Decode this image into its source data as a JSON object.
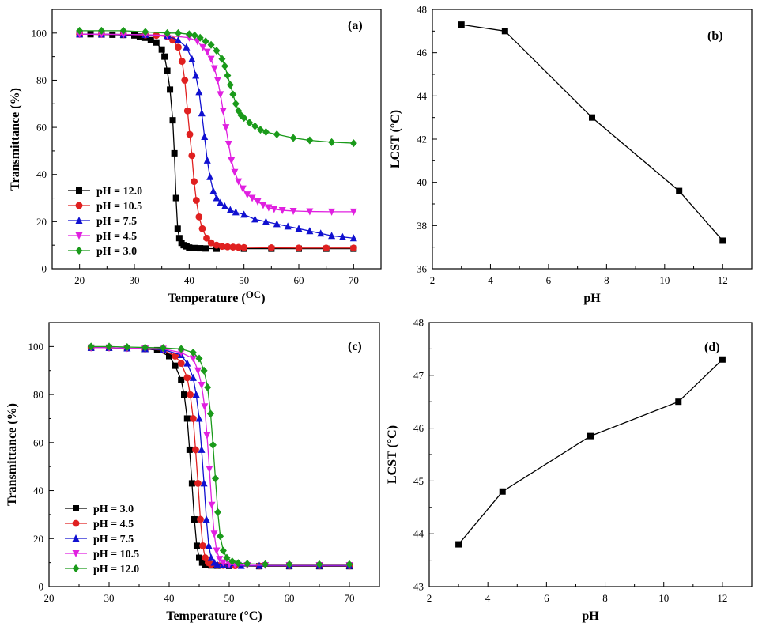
{
  "chart_data": [
    {
      "panel": "(a)",
      "type": "line",
      "xlabel": "Temperature (",
      "xlabel_unit": "OC",
      "xlabel_close": ")",
      "ylabel": "Transmittance (%)",
      "xlim": [
        15,
        75
      ],
      "ylim": [
        0,
        110
      ],
      "xticks": [
        20,
        30,
        40,
        50,
        60,
        70
      ],
      "yticks": [
        0,
        20,
        40,
        60,
        80,
        100
      ],
      "x_minor_per_major": 1,
      "y_minor_per_major": 1,
      "legend": "bottom-left",
      "series": [
        {
          "name": "pH = 12.0",
          "color": "#000000",
          "marker": "square",
          "x": [
            20,
            22,
            24,
            26,
            28,
            30,
            31,
            32,
            33,
            34,
            35,
            35.5,
            36,
            36.5,
            37,
            37.3,
            37.6,
            37.9,
            38.2,
            38.6,
            39,
            39.5,
            40,
            41,
            42,
            43,
            45,
            50,
            55,
            60,
            65,
            70
          ],
          "y": [
            99.5,
            99.5,
            99.4,
            99.3,
            99.2,
            99,
            98.5,
            98,
            97,
            96,
            93,
            90,
            84,
            76,
            63,
            49,
            30,
            17,
            13,
            11,
            10,
            9.5,
            9,
            8.8,
            8.7,
            8.6,
            8.5,
            8.5,
            8.5,
            8.5,
            8.5,
            8.5
          ]
        },
        {
          "name": "pH = 10.5",
          "color": "#e02020",
          "marker": "circle",
          "x": [
            20,
            24,
            28,
            32,
            34,
            36,
            37,
            38,
            38.7,
            39.2,
            39.7,
            40.1,
            40.5,
            40.9,
            41.3,
            41.8,
            42.4,
            43.2,
            44,
            45,
            46,
            47,
            48,
            49,
            50,
            55,
            60,
            65,
            70
          ],
          "y": [
            99.5,
            99.5,
            99.4,
            99.2,
            99,
            98.5,
            97,
            94,
            88,
            80,
            67,
            57,
            48,
            37,
            29,
            22,
            17,
            13,
            11,
            10,
            9.5,
            9.3,
            9.2,
            9.1,
            9,
            8.9,
            8.8,
            8.8,
            8.8
          ]
        },
        {
          "name": "pH = 7.5",
          "color": "#1010d0",
          "marker": "triangle-up",
          "x": [
            20,
            24,
            28,
            32,
            36,
            38,
            39.5,
            40.5,
            41.2,
            41.8,
            42.3,
            42.8,
            43.3,
            43.8,
            44.4,
            45,
            45.7,
            46.5,
            47.5,
            48.5,
            50,
            52,
            54,
            56,
            58,
            60,
            62,
            64,
            66,
            68,
            70
          ],
          "y": [
            99.5,
            99.5,
            99.4,
            99.3,
            98.8,
            97,
            94,
            89,
            82,
            75,
            66,
            56,
            46,
            39,
            33,
            30,
            28,
            26.5,
            25,
            24,
            23,
            21,
            20,
            19,
            18,
            17,
            16,
            15,
            14,
            13.5,
            13
          ]
        },
        {
          "name": "pH = 4.5",
          "color": "#e020e0",
          "marker": "triangle-down",
          "x": [
            20,
            24,
            28,
            32,
            36,
            40,
            41.5,
            42.5,
            43.3,
            44,
            44.6,
            45.2,
            45.7,
            46.2,
            46.7,
            47.2,
            47.7,
            48.3,
            49,
            49.8,
            50.6,
            51.5,
            52.5,
            53.5,
            54.5,
            55.5,
            57,
            59,
            62,
            66,
            70
          ],
          "y": [
            99.5,
            99.5,
            99.4,
            99.3,
            99,
            98,
            96.5,
            94,
            92,
            89,
            85,
            80,
            74,
            67,
            60,
            53,
            46,
            41,
            37,
            34,
            31.5,
            30,
            28.5,
            27,
            26,
            25.3,
            24.8,
            24.5,
            24.3,
            24.2,
            24.2
          ]
        },
        {
          "name": "pH = 3.0",
          "color": "#1a9a1a",
          "marker": "diamond",
          "x": [
            20,
            24,
            28,
            32,
            36,
            38,
            40,
            41,
            42,
            43,
            44,
            45,
            46,
            46.5,
            47,
            47.5,
            48,
            48.5,
            49,
            49.5,
            50,
            51,
            52,
            53,
            54,
            56,
            59,
            62,
            66,
            70
          ],
          "y": [
            101,
            101,
            101,
            100.5,
            100,
            100,
            99.5,
            99,
            98,
            96.5,
            95,
            92.5,
            89,
            86,
            82,
            78,
            74,
            70,
            67,
            65,
            64,
            62,
            60.5,
            59,
            58,
            57,
            55.5,
            54.5,
            53.7,
            53.3
          ]
        }
      ]
    },
    {
      "panel": "(b)",
      "type": "line",
      "xlabel": "pH",
      "ylabel": "LCST (°C)",
      "xlim": [
        2,
        13
      ],
      "ylim": [
        36,
        48
      ],
      "xticks": [
        2,
        4,
        6,
        8,
        10,
        12
      ],
      "yticks": [
        36,
        38,
        40,
        42,
        44,
        46,
        48
      ],
      "x_minor_per_major": 1,
      "y_minor_per_major": 1,
      "series": [
        {
          "name": "LCST",
          "color": "#000000",
          "marker": "square",
          "x": [
            3.0,
            4.5,
            7.5,
            10.5,
            12.0
          ],
          "y": [
            47.3,
            47.0,
            43.0,
            39.6,
            37.3
          ]
        }
      ]
    },
    {
      "panel": "(c)",
      "type": "line",
      "xlabel": "Temperature (°C)",
      "ylabel": "Transmittance (%)",
      "xlim": [
        20,
        75
      ],
      "ylim": [
        0,
        110
      ],
      "xticks": [
        20,
        30,
        40,
        50,
        60,
        70
      ],
      "yticks": [
        0,
        20,
        40,
        60,
        80,
        100
      ],
      "x_minor_per_major": 1,
      "y_minor_per_major": 1,
      "legend": "bottom-left",
      "series": [
        {
          "name": "pH = 3.0",
          "color": "#000000",
          "marker": "square",
          "x": [
            27,
            30,
            33,
            36,
            38,
            40,
            41,
            42,
            42.5,
            43,
            43.4,
            43.8,
            44.2,
            44.6,
            45,
            45.5,
            46,
            47,
            48,
            50,
            55,
            60,
            65,
            70
          ],
          "y": [
            99.5,
            99.5,
            99.3,
            99,
            98.5,
            96,
            92,
            86,
            80,
            70,
            57,
            43,
            28,
            17,
            12,
            10,
            9,
            8.8,
            8.7,
            8.6,
            8.5,
            8.5,
            8.5,
            8.5
          ]
        },
        {
          "name": "pH = 4.5",
          "color": "#e02020",
          "marker": "circle",
          "x": [
            27,
            30,
            33,
            36,
            39,
            41,
            42,
            43,
            43.5,
            44,
            44.4,
            44.8,
            45.2,
            45.6,
            46,
            46.5,
            47,
            48,
            49,
            51,
            55,
            60,
            65,
            70
          ],
          "y": [
            99.5,
            99.5,
            99.3,
            99,
            98.5,
            96,
            93,
            87,
            80,
            70,
            57,
            43,
            28,
            17,
            12,
            10,
            9.2,
            8.9,
            8.8,
            8.7,
            8.6,
            8.6,
            8.6,
            8.6
          ]
        },
        {
          "name": "pH = 7.5",
          "color": "#1010d0",
          "marker": "triangle-up",
          "x": [
            27,
            30,
            33,
            36,
            39,
            42,
            43,
            44,
            44.5,
            45,
            45.4,
            45.8,
            46.2,
            46.6,
            47,
            47.5,
            48,
            49,
            50,
            52,
            55,
            60,
            65,
            70
          ],
          "y": [
            99.5,
            99.5,
            99.3,
            99,
            98.7,
            96.5,
            93,
            87,
            80,
            70,
            57,
            43,
            28,
            17,
            12,
            10,
            9.2,
            8.9,
            8.8,
            8.7,
            8.7,
            8.7,
            8.7,
            8.7
          ]
        },
        {
          "name": "pH = 10.5",
          "color": "#e020e0",
          "marker": "triangle-down",
          "x": [
            27,
            30,
            33,
            36,
            39,
            42,
            44,
            44.8,
            45.4,
            45.9,
            46.3,
            46.7,
            47.1,
            47.5,
            47.9,
            48.4,
            49,
            50,
            51,
            53,
            56,
            60,
            65,
            70
          ],
          "y": [
            99.5,
            99.5,
            99.3,
            99.2,
            99,
            97.5,
            95,
            90,
            84,
            75,
            63,
            49,
            34,
            22,
            15,
            11.5,
            10,
            9.3,
            9,
            8.9,
            8.9,
            8.9,
            8.9,
            8.9
          ]
        },
        {
          "name": "pH = 12.0",
          "color": "#1a9a1a",
          "marker": "diamond",
          "x": [
            27,
            30,
            33,
            36,
            39,
            42,
            44,
            45,
            45.8,
            46.4,
            46.9,
            47.3,
            47.7,
            48.1,
            48.5,
            49,
            49.6,
            50.5,
            51.5,
            53,
            56,
            60,
            65,
            70
          ],
          "y": [
            100,
            100,
            99.8,
            99.6,
            99.4,
            99,
            97.5,
            95,
            90,
            83,
            72,
            59,
            45,
            31,
            21,
            15,
            12,
            10.5,
            9.8,
            9.5,
            9.3,
            9.3,
            9.3,
            9.3
          ]
        }
      ]
    },
    {
      "panel": "(d)",
      "type": "line",
      "xlabel": "pH",
      "ylabel": "LCST (°C)",
      "xlim": [
        2,
        13
      ],
      "ylim": [
        43,
        48
      ],
      "xticks": [
        2,
        4,
        6,
        8,
        10,
        12
      ],
      "yticks": [
        43,
        44,
        45,
        46,
        47,
        48
      ],
      "x_minor_per_major": 1,
      "y_minor_per_major": 1,
      "series": [
        {
          "name": "LCST",
          "color": "#000000",
          "marker": "square",
          "x": [
            3.0,
            4.5,
            7.5,
            10.5,
            12.0
          ],
          "y": [
            43.8,
            44.8,
            45.85,
            46.5,
            47.3
          ]
        }
      ]
    }
  ]
}
